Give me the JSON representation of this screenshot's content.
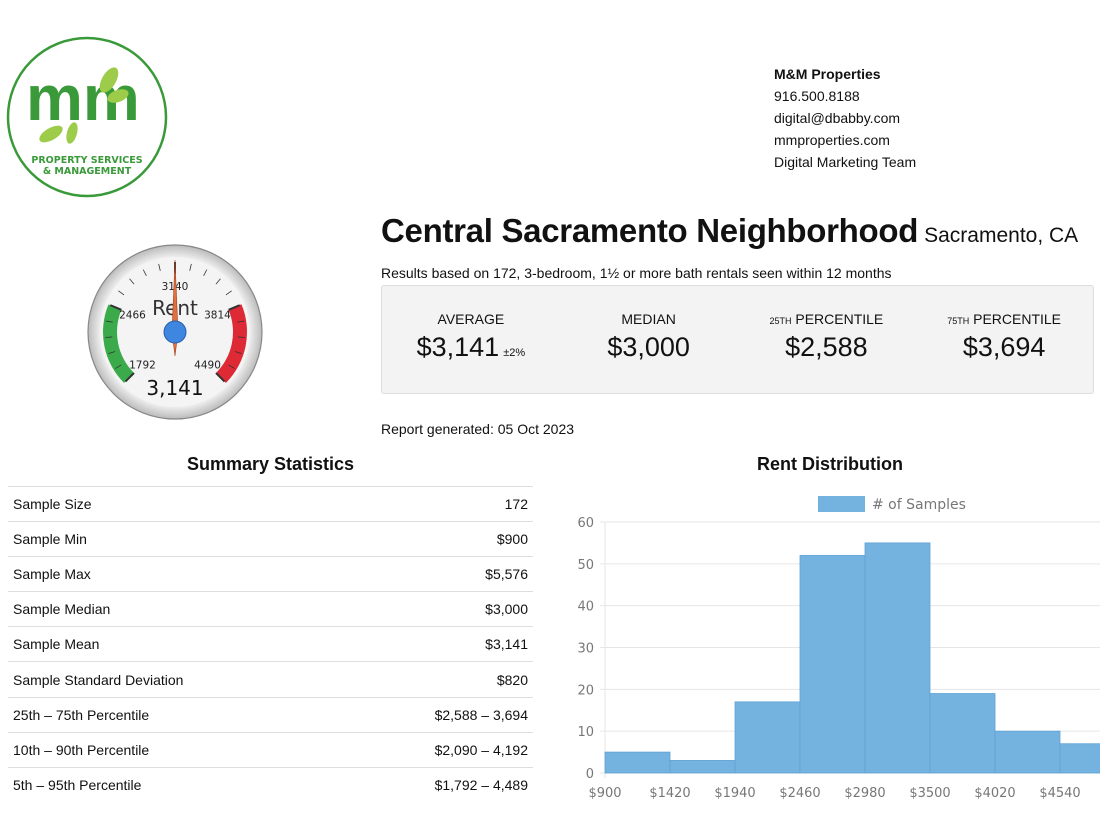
{
  "logo": {
    "text": "mm",
    "tagline1": "PROPERTY SERVICES",
    "tagline2": "& MANAGEMENT",
    "brand_color": "#3a9a3a"
  },
  "contact": {
    "company": "M&M Properties",
    "phone": "916.500.8188",
    "email": "digital@dbabby.com",
    "website": "mmproperties.com",
    "team": "Digital Marketing Team"
  },
  "header": {
    "title": "Central Sacramento Neighborhood",
    "city": "Sacramento, CA",
    "basis": "Results based on 172, 3-bedroom, 1½ or more bath rentals seen within 12 months"
  },
  "stats": [
    {
      "label": "Average",
      "sup": "",
      "value": "$3,141",
      "note": "±2%"
    },
    {
      "label": "Median",
      "sup": "",
      "value": "$3,000",
      "note": ""
    },
    {
      "label": "Percentile",
      "sup": "25th",
      "value": "$2,588",
      "note": ""
    },
    {
      "label": "Percentile",
      "sup": "75th",
      "value": "$3,694",
      "note": ""
    }
  ],
  "report_generated": "Report generated: 05 Oct 2023",
  "gauge": {
    "label": "Rent",
    "value": 3141,
    "value_text": "3,141",
    "min": 1792,
    "max": 4490,
    "ticks": [
      "1792",
      "2466",
      "3140",
      "3814",
      "4490"
    ],
    "green_range": [
      1792,
      2466
    ],
    "red_range": [
      3814,
      4490
    ],
    "green": "#3aaa4a",
    "red": "#dd2a35",
    "needle": "#e0703f",
    "hub": "#3f86e0"
  },
  "summary": {
    "title": "Summary Statistics",
    "rows": [
      {
        "label": "Sample Size",
        "value": "172"
      },
      {
        "label": "Sample Min",
        "value": "$900"
      },
      {
        "label": "Sample Max",
        "value": "$5,576"
      },
      {
        "label": "Sample Median",
        "value": "$3,000"
      },
      {
        "label": "Sample Mean",
        "value": "$3,141"
      },
      {
        "label": "Sample Standard Deviation",
        "value": "$820"
      },
      {
        "label": "25th – 75th Percentile",
        "value": "$2,588 – 3,694"
      },
      {
        "label": "10th – 90th Percentile",
        "value": "$2,090 – 4,192"
      },
      {
        "label": "5th – 95th Percentile",
        "value": "$1,792 – 4,489"
      }
    ]
  },
  "chart_data": {
    "type": "bar",
    "title": "Rent Distribution",
    "legend": "# of Samples",
    "legend_position": "top",
    "bin_edges": [
      900,
      1420,
      1940,
      2460,
      2980,
      3500,
      4020,
      4540,
      5060
    ],
    "x_tick_labels": [
      "$900",
      "$1420",
      "$1940",
      "$2460",
      "$2980",
      "$3500",
      "$4020",
      "$4540"
    ],
    "series": [
      {
        "name": "# of Samples",
        "values": [
          5,
          3,
          17,
          52,
          55,
          19,
          10,
          7
        ]
      }
    ],
    "ylim": [
      0,
      60
    ],
    "y_ticks": [
      0,
      10,
      20,
      30,
      40,
      50,
      60
    ],
    "grid": true,
    "color": "#74b2e0"
  }
}
